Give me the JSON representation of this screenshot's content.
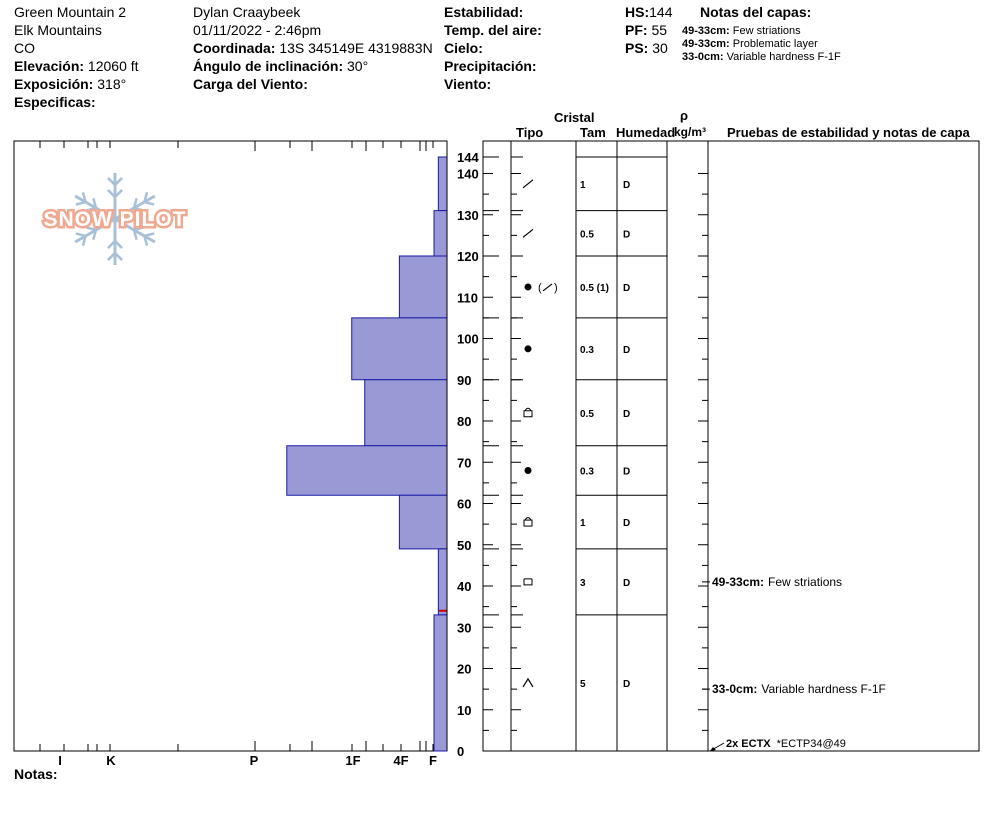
{
  "site": {
    "name": "Green Mountain 2",
    "range": "Elk Mountains",
    "state": "CO",
    "elevation_label": "Elevación:",
    "elevation_value": "12060 ft",
    "aspect_label": "Exposición:",
    "aspect_value": "318°",
    "specifics_label": "Especificas:"
  },
  "observer": {
    "name": "Dylan Craaybeek",
    "datetime": "01/11/2022 - 2:46pm",
    "coord_label": "Coordinada:",
    "coord_value": "13S 345149E 4319883N",
    "slope_label": "Ángulo de inclinación:",
    "slope_value": "30°",
    "wind_load_label": "Carga del Viento:"
  },
  "conditions": {
    "stability_label": "Estabilidad:",
    "air_temp_label": "Temp. del aire:",
    "sky_label": "Cielo:",
    "precip_label": "Precipitación:",
    "wind_label": "Viento:"
  },
  "depths": {
    "hs_label": "HS:",
    "hs_value": "144",
    "pf_label": "PF:",
    "pf_value": "55",
    "ps_label": "PS:",
    "ps_value": "30"
  },
  "layer_notes": {
    "title": "Notas del capas:",
    "items": [
      {
        "range": "49-33cm:",
        "text": "Few striations"
      },
      {
        "range": "49-33cm:",
        "text": "Problematic layer"
      },
      {
        "range": "33-0cm:",
        "text": "Variable hardness F-1F"
      }
    ]
  },
  "logo_text": "SNOW PILOT",
  "notes_label": "Notas:",
  "table_headers": {
    "cristal": "Cristal",
    "tipo": "Tipo",
    "tam": "Tam",
    "humedad": "Humedad",
    "rho": "ρ",
    "density_unit": "kg/m³",
    "tests": "Pruebas de estabilidad y notas de capa"
  },
  "stability_notes": [
    {
      "depth": 41,
      "range": "49-33cm:",
      "text": "Few striations"
    },
    {
      "depth": 15,
      "range": "33-0cm:",
      "text": "Variable hardness F-1F"
    }
  ],
  "stability_test": {
    "depth": 0,
    "label": "2x ECTX",
    "text": "*ECTP34@49"
  },
  "colors": {
    "hardness_fill": "#9999d6",
    "hardness_stroke": "#1a1aa6",
    "failure_marker": "#cc0000",
    "logo_orange": "#f0a890",
    "logo_blue": "#a8c0d8"
  },
  "chart_data": {
    "type": "bar",
    "orientation": "horizontal",
    "y_axis": {
      "label": "",
      "range": [
        0,
        144
      ],
      "ticks": [
        0,
        10,
        20,
        30,
        40,
        50,
        60,
        70,
        80,
        90,
        100,
        110,
        120,
        130,
        140,
        144
      ]
    },
    "x_axis": {
      "label": "",
      "hardness_scale": [
        "I",
        "K",
        "P",
        "1F",
        "4F",
        "F"
      ]
    },
    "layers": [
      {
        "top": 144,
        "bottom": 131,
        "hardness": "F",
        "hardness_frac": 0.02,
        "grain_symbol": "slash",
        "grain_label": "⁄",
        "size": "1",
        "moisture": "D"
      },
      {
        "top": 131,
        "bottom": 120,
        "hardness": "F",
        "hardness_frac": 0.03,
        "grain_symbol": "slash",
        "grain_label": "⁄",
        "size": "0.5",
        "moisture": "D"
      },
      {
        "top": 120,
        "bottom": 105,
        "hardness": "4F",
        "hardness_frac": 0.11,
        "grain_symbol": "dot_slash",
        "grain_label": "● (⁄)",
        "size": "0.5 (1)",
        "moisture": "D"
      },
      {
        "top": 105,
        "bottom": 90,
        "hardness": "1F",
        "hardness_frac": 0.22,
        "grain_symbol": "dot",
        "grain_label": "●",
        "size": "0.3",
        "moisture": "D"
      },
      {
        "top": 90,
        "bottom": 74,
        "hardness": "1F-",
        "hardness_frac": 0.19,
        "grain_symbol": "rounded_square",
        "grain_label": "⊡",
        "size": "0.5",
        "moisture": "D"
      },
      {
        "top": 74,
        "bottom": 62,
        "hardness": "P-",
        "hardness_frac": 0.37,
        "grain_symbol": "dot",
        "grain_label": "●",
        "size": "0.3",
        "moisture": "D"
      },
      {
        "top": 62,
        "bottom": 49,
        "hardness": "4F",
        "hardness_frac": 0.11,
        "grain_symbol": "rounded_square",
        "grain_label": "⊡",
        "size": "1",
        "moisture": "D"
      },
      {
        "top": 49,
        "bottom": 33,
        "hardness": "F",
        "hardness_frac": 0.02,
        "grain_symbol": "square",
        "grain_label": "□",
        "size": "3",
        "moisture": "D"
      },
      {
        "top": 33,
        "bottom": 0,
        "hardness": "F+",
        "hardness_frac": 0.03,
        "grain_symbol": "caret",
        "grain_label": "∧",
        "size": "5",
        "moisture": "D"
      }
    ],
    "failure_depth": 34
  }
}
